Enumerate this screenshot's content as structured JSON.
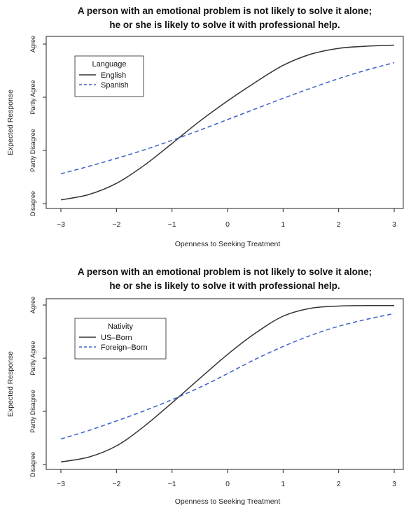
{
  "chart_data": [
    {
      "type": "line",
      "title": "A person with an emotional problem is not likely to solve it alone;\nhe or she is likely to solve it with professional help.",
      "xlabel": "Openness to Seeking Treatment",
      "ylabel": "Expected Response",
      "xlim": [
        -3,
        3
      ],
      "ylim": [
        1,
        4
      ],
      "x_ticks": [
        -3,
        -2,
        -1,
        0,
        1,
        2,
        3
      ],
      "x_tick_labels": [
        "−3",
        "−2",
        "−1",
        "0",
        "1",
        "2",
        "3"
      ],
      "y_ticks": [
        1,
        2,
        3,
        4
      ],
      "y_tick_labels": [
        "Disagree",
        "Partly Disagree",
        "Partly Agree",
        "Agree"
      ],
      "grid": false,
      "legend": {
        "title": "Language",
        "position": "top-left"
      },
      "series": [
        {
          "name": "English",
          "style": "solid",
          "color": "#333333",
          "x": [
            -3,
            -2.5,
            -2,
            -1.5,
            -1,
            -0.5,
            0,
            0.5,
            1,
            1.5,
            2,
            2.5,
            3
          ],
          "y": [
            1.07,
            1.17,
            1.38,
            1.72,
            2.13,
            2.55,
            2.93,
            3.28,
            3.6,
            3.81,
            3.92,
            3.96,
            3.98
          ]
        },
        {
          "name": "Spanish",
          "style": "dashed",
          "color": "#4466cc",
          "x": [
            -3,
            -2.5,
            -2,
            -1.5,
            -1,
            -0.5,
            0,
            0.5,
            1,
            1.5,
            2,
            2.5,
            3
          ],
          "y": [
            1.56,
            1.7,
            1.85,
            2.01,
            2.19,
            2.38,
            2.58,
            2.78,
            2.98,
            3.17,
            3.35,
            3.51,
            3.65
          ]
        }
      ]
    },
    {
      "type": "line",
      "title": "A person with an emotional problem is not likely to solve it alone;\nhe or she is likely to solve it with professional help.",
      "xlabel": "Openness to Seeking Treatment",
      "ylabel": "Expected Response",
      "xlim": [
        -3,
        3
      ],
      "ylim": [
        1,
        4
      ],
      "x_ticks": [
        -3,
        -2,
        -1,
        0,
        1,
        2,
        3
      ],
      "x_tick_labels": [
        "−3",
        "−2",
        "−1",
        "0",
        "1",
        "2",
        "3"
      ],
      "y_ticks": [
        1,
        2,
        3,
        4
      ],
      "y_tick_labels": [
        "Disagree",
        "Partly Disagree",
        "Partly Agree",
        "Agree"
      ],
      "grid": false,
      "legend": {
        "title": "Nativity",
        "position": "top-left"
      },
      "series": [
        {
          "name": "US–Born",
          "style": "solid",
          "color": "#333333",
          "x": [
            -3,
            -2.5,
            -2,
            -1.5,
            -1,
            -0.5,
            0,
            0.5,
            1,
            1.5,
            2,
            2.5,
            3
          ],
          "y": [
            1.05,
            1.14,
            1.35,
            1.72,
            2.16,
            2.62,
            3.07,
            3.47,
            3.79,
            3.94,
            3.98,
            3.99,
            3.99
          ]
        },
        {
          "name": "Foreign–Born",
          "style": "dashed",
          "color": "#4466cc",
          "x": [
            -3,
            -2.5,
            -2,
            -1.5,
            -1,
            -0.5,
            0,
            0.5,
            1,
            1.5,
            2,
            2.5,
            3
          ],
          "y": [
            1.48,
            1.64,
            1.82,
            2.01,
            2.22,
            2.45,
            2.71,
            2.98,
            3.22,
            3.43,
            3.6,
            3.73,
            3.84
          ]
        }
      ]
    }
  ]
}
